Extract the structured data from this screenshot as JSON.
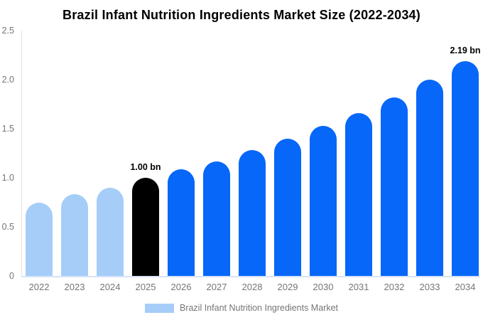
{
  "title": "Brazil Infant Nutrition Ingredients Market Size (2022-2034)",
  "legend": {
    "label": "Brazil Infant Nutrition Ingredients Market",
    "swatch_color": "#a5cdf8"
  },
  "colors": {
    "historical": "#a5cdf8",
    "base_year": "#000000",
    "forecast": "#0667f8",
    "axis_text": "#757575",
    "title_text": "#000000",
    "axis_line": "#e3e3e3",
    "baseline": "#d6e2f6"
  },
  "y_axis": {
    "ticks": [
      {
        "label": "0",
        "value": 0
      },
      {
        "label": "0.5",
        "value": 0.5
      },
      {
        "label": "1.0",
        "value": 1.0
      },
      {
        "label": "1.5",
        "value": 1.5
      },
      {
        "label": "2.0",
        "value": 2.0
      },
      {
        "label": "2.5",
        "value": 2.5
      }
    ]
  },
  "chart_data": {
    "type": "bar",
    "title": "Brazil Infant Nutrition Ingredients Market Size (2022-2034)",
    "unit": "bn",
    "categories": [
      "2022",
      "2023",
      "2024",
      "2025",
      "2026",
      "2027",
      "2028",
      "2029",
      "2030",
      "2031",
      "2032",
      "2033",
      "2034"
    ],
    "values": [
      0.75,
      0.83,
      0.9,
      1.0,
      1.09,
      1.17,
      1.28,
      1.4,
      1.53,
      1.66,
      1.82,
      2.0,
      2.19
    ],
    "segments": [
      "historical",
      "historical",
      "historical",
      "base_year",
      "forecast",
      "forecast",
      "forecast",
      "forecast",
      "forecast",
      "forecast",
      "forecast",
      "forecast",
      "forecast"
    ],
    "annotations": [
      {
        "category": "2025",
        "text": "1.00 bn"
      },
      {
        "category": "2034",
        "text": "2.19 bn"
      }
    ],
    "xlabel": "",
    "ylabel": "",
    "ylim": [
      0,
      2.5
    ],
    "grid": false,
    "legend_position": "bottom"
  }
}
